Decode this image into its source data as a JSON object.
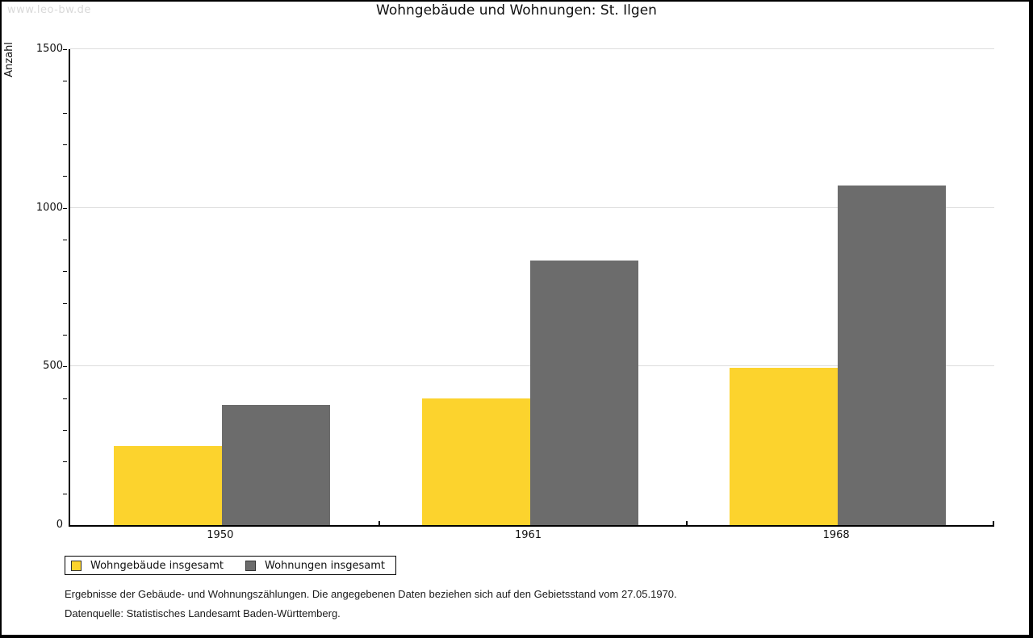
{
  "watermark": "www.leo-bw.de",
  "title": "Wohngebäude und Wohnungen: St. Ilgen",
  "y_axis_title": "Anzahl",
  "legend": {
    "items": [
      {
        "label": "Wohngebäude insgesamt",
        "color": "#FCD32D"
      },
      {
        "label": "Wohnungen insgesamt",
        "color": "#6C6C6C"
      }
    ]
  },
  "footer": {
    "line1": "Ergebnisse der Gebäude- und Wohnungszählungen. Die angegebenen Daten beziehen sich auf den Gebietsstand vom 27.05.1970.",
    "line2": "Datenquelle: Statistisches Landesamt Baden-Württemberg."
  },
  "colors": {
    "bar_yellow": "#FCD32D",
    "bar_gray": "#6C6C6C",
    "gridline": "#DDDDDD",
    "axis": "#000000",
    "watermark": "#D9D9D9"
  },
  "chart_data": {
    "type": "bar",
    "categories": [
      "1950",
      "1961",
      "1968"
    ],
    "series": [
      {
        "name": "Wohngebäude insgesamt",
        "color": "#FCD32D",
        "values": [
          250,
          400,
          495
        ]
      },
      {
        "name": "Wohnungen insgesamt",
        "color": "#6C6C6C",
        "values": [
          380,
          835,
          1070
        ]
      }
    ],
    "title": "Wohngebäude und Wohnungen: St. Ilgen",
    "xlabel": "",
    "ylabel": "Anzahl",
    "ylim": [
      0,
      1500
    ],
    "yticks_major": [
      0,
      500,
      1000,
      1500
    ],
    "ytick_minor_step": 100,
    "grid": true,
    "legend_position": "bottom-left"
  }
}
